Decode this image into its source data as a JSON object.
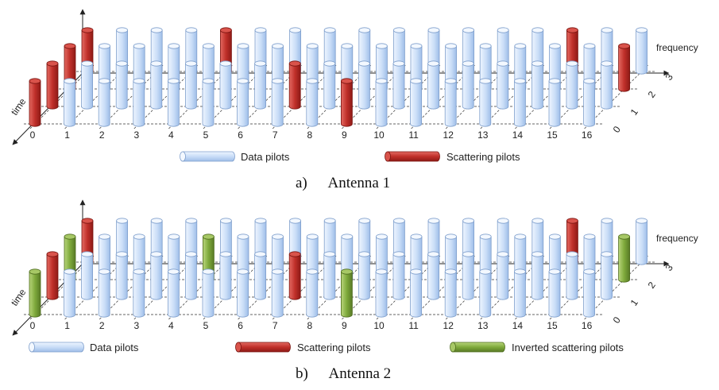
{
  "colors": {
    "data_pilot": "#c9ddf7",
    "data_pilot_edge": "#7f9fcc",
    "scattering_pilot": "#c0302a",
    "inverted_scattering_pilot": "#7faa3c",
    "grid": "#333333"
  },
  "panels": [
    {
      "caption_letter": "a)",
      "caption_text": "Antenna 1",
      "freq_label": "frequency",
      "time_label": "time",
      "freq_ticks": [
        "0",
        "1",
        "2",
        "3",
        "4",
        "5",
        "6",
        "7",
        "8",
        "9",
        "10",
        "11",
        "12",
        "13",
        "14",
        "15",
        "16"
      ],
      "time_ticks": [
        "0",
        "1",
        "2",
        "3"
      ],
      "legend": [
        {
          "label": "Data pilots",
          "kind": "data"
        },
        {
          "label": "Scattering pilots",
          "kind": "scatter"
        }
      ],
      "special_pilots": [
        {
          "f": 0,
          "t": 0,
          "kind": "scatter"
        },
        {
          "f": 0,
          "t": 1,
          "kind": "scatter"
        },
        {
          "f": 0,
          "t": 2,
          "kind": "scatter"
        },
        {
          "f": 0,
          "t": 3,
          "kind": "scatter"
        },
        {
          "f": 4,
          "t": 3,
          "kind": "scatter"
        },
        {
          "f": 7,
          "t": 1,
          "kind": "scatter"
        },
        {
          "f": 9,
          "t": 0,
          "kind": "scatter"
        },
        {
          "f": 14,
          "t": 3,
          "kind": "scatter"
        },
        {
          "f": 16,
          "t": 2,
          "kind": "scatter"
        }
      ]
    },
    {
      "caption_letter": "b)",
      "caption_text": "Antenna 2",
      "freq_label": "frequency",
      "time_label": "time",
      "freq_ticks": [
        "0",
        "1",
        "2",
        "3",
        "4",
        "5",
        "6",
        "7",
        "8",
        "9",
        "10",
        "11",
        "12",
        "13",
        "14",
        "15",
        "16"
      ],
      "time_ticks": [
        "0",
        "1",
        "2",
        "3"
      ],
      "legend": [
        {
          "label": "Data pilots",
          "kind": "data"
        },
        {
          "label": "Scattering pilots",
          "kind": "scatter"
        },
        {
          "label": "Inverted scattering pilots",
          "kind": "inverted"
        }
      ],
      "special_pilots": [
        {
          "f": 0,
          "t": 0,
          "kind": "inverted"
        },
        {
          "f": 0,
          "t": 1,
          "kind": "scatter"
        },
        {
          "f": 0,
          "t": 2,
          "kind": "inverted"
        },
        {
          "f": 0,
          "t": 3,
          "kind": "scatter"
        },
        {
          "f": 4,
          "t": 2,
          "kind": "inverted"
        },
        {
          "f": 7,
          "t": 1,
          "kind": "scatter"
        },
        {
          "f": 9,
          "t": 0,
          "kind": "inverted"
        },
        {
          "f": 14,
          "t": 3,
          "kind": "scatter"
        },
        {
          "f": 16,
          "t": 2,
          "kind": "inverted"
        }
      ]
    }
  ]
}
